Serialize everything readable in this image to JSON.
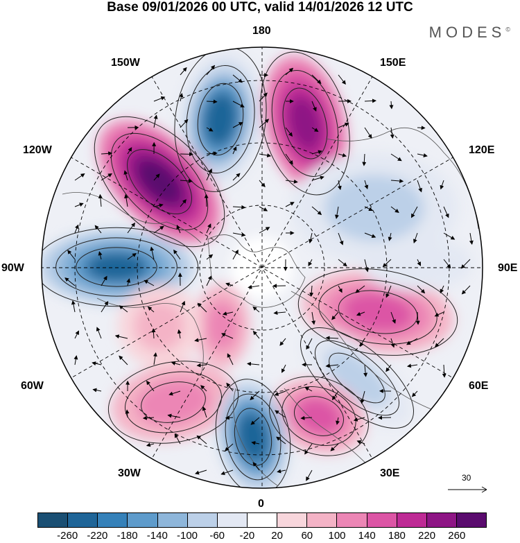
{
  "title": "Base 09/01/2026 00 UTC, valid 14/01/2026 12 UTC",
  "brand": "MODES",
  "brand_mark": "©",
  "longitude_labels": {
    "top": "180",
    "bottom": "0",
    "left": "90W",
    "right": "90E",
    "upper_left_1": "150W",
    "upper_left_2": "120W",
    "upper_right_1": "150E",
    "upper_right_2": "120E",
    "lower_left_1": "60W",
    "lower_left_2": "30W",
    "lower_right_1": "60E",
    "lower_right_2": "30E"
  },
  "vector_reference": {
    "label": "30"
  },
  "colorbar": {
    "colors": [
      "#1a4f73",
      "#1f6598",
      "#3581b9",
      "#5e9bcb",
      "#8eb6da",
      "#bcd0e8",
      "#e3e8f3",
      "#ffffff",
      "#f8d6dc",
      "#f4b3c6",
      "#ec86b5",
      "#dc55a5",
      "#be2a95",
      "#8e1585",
      "#5a0b6e"
    ],
    "tick_labels": [
      "-260",
      "-220",
      "-180",
      "-140",
      "-100",
      "-60",
      "-20",
      "20",
      "60",
      "100",
      "140",
      "180",
      "220",
      "260"
    ]
  }
}
